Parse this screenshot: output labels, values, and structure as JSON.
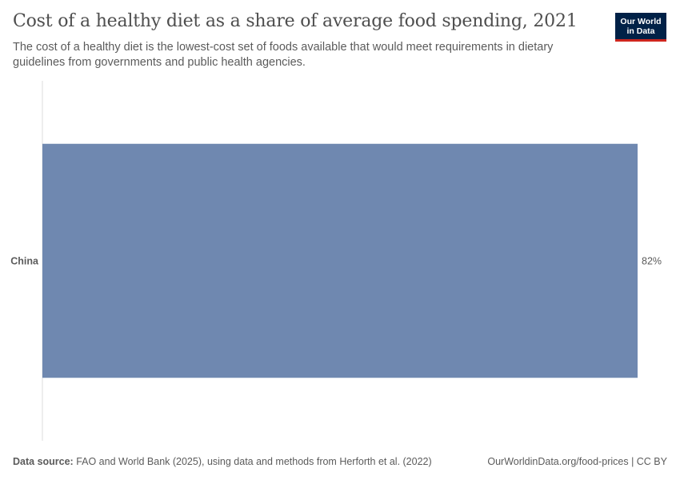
{
  "header": {
    "title": "Cost of a healthy diet as a share of average food spending, 2021",
    "subtitle": "The cost of a healthy diet is the lowest-cost set of foods available that would meet requirements in dietary guidelines from governments and public health agencies."
  },
  "logo": {
    "line1": "Our World",
    "line2": "in Data",
    "bg_color": "#002147",
    "accent_color": "#ce261e"
  },
  "chart_data": {
    "type": "bar",
    "orientation": "horizontal",
    "categories": [
      "China"
    ],
    "values": [
      82
    ],
    "value_labels": [
      "82%"
    ],
    "unit": "%",
    "xlim": [
      0,
      82
    ],
    "bar_color": "#6f88b0",
    "grid": false
  },
  "footer": {
    "source_label": "Data source:",
    "source_text": " FAO and World Bank (2025), using data and methods from Herforth et al. (2022)",
    "url_text": "OurWorldinData.org/food-prices | CC BY"
  }
}
